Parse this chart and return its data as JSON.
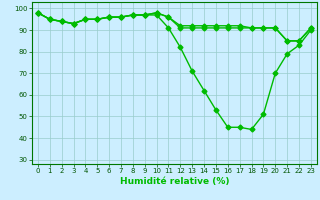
{
  "xlabel": "Humidité relative (%)",
  "xlim": [
    -0.5,
    23.5
  ],
  "ylim": [
    28,
    103
  ],
  "yticks": [
    30,
    40,
    50,
    60,
    70,
    80,
    90,
    100
  ],
  "xticks": [
    0,
    1,
    2,
    3,
    4,
    5,
    6,
    7,
    8,
    9,
    10,
    11,
    12,
    13,
    14,
    15,
    16,
    17,
    18,
    19,
    20,
    21,
    22,
    23
  ],
  "bg_color": "#cceeff",
  "grid_color": "#99cccc",
  "line_color": "#00bb00",
  "lines": [
    [
      98,
      95,
      94,
      93,
      95,
      95,
      96,
      96,
      97,
      97,
      97,
      91,
      82,
      71,
      62,
      53,
      45,
      45,
      44,
      51,
      70,
      79,
      83,
      90
    ],
    [
      98,
      95,
      94,
      93,
      95,
      95,
      96,
      96,
      97,
      97,
      98,
      96,
      91,
      91,
      91,
      91,
      91,
      91,
      91,
      91,
      91,
      85,
      85,
      91
    ],
    [
      98,
      95,
      94,
      93,
      95,
      95,
      96,
      96,
      97,
      97,
      98,
      96,
      92,
      92,
      92,
      92,
      92,
      92,
      91,
      91,
      91,
      85,
      85,
      91
    ]
  ],
  "marker": "D",
  "markersize": 2.5,
  "linewidth": 1.0,
  "xlabel_fontsize": 6.5,
  "tick_fontsize": 5
}
